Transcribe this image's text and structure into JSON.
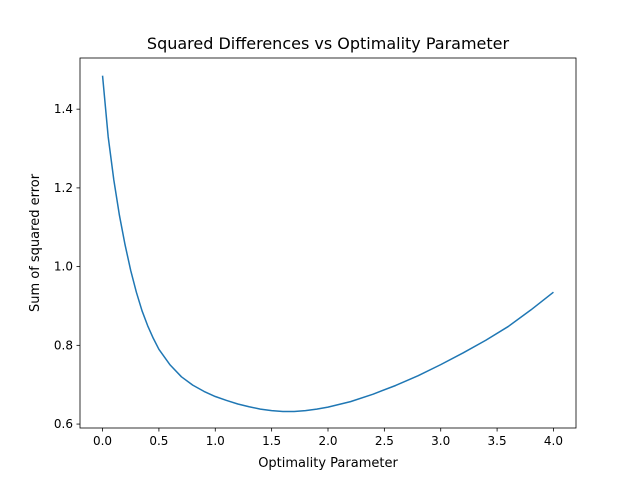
{
  "chart_data": {
    "type": "line",
    "title": "Squared Differences vs Optimality Parameter",
    "xlabel": "Optimality Parameter",
    "ylabel": "Sum of squared error",
    "xlim": [
      -0.2,
      4.2
    ],
    "ylim": [
      0.59,
      1.53
    ],
    "xticks": [
      0.0,
      0.5,
      1.0,
      1.5,
      2.0,
      2.5,
      3.0,
      3.5,
      4.0
    ],
    "xtick_labels": [
      "0.0",
      "0.5",
      "1.0",
      "1.5",
      "2.0",
      "2.5",
      "3.0",
      "3.5",
      "4.0"
    ],
    "yticks": [
      0.6,
      0.8,
      1.0,
      1.2,
      1.4
    ],
    "ytick_labels": [
      "0.6",
      "0.8",
      "1.0",
      "1.2",
      "1.4"
    ],
    "grid": false,
    "series": [
      {
        "color": "#1f77b4",
        "x": [
          0.0,
          0.05,
          0.1,
          0.15,
          0.2,
          0.25,
          0.3,
          0.35,
          0.4,
          0.45,
          0.5,
          0.6,
          0.7,
          0.8,
          0.9,
          1.0,
          1.1,
          1.2,
          1.3,
          1.4,
          1.5,
          1.6,
          1.65,
          1.7,
          1.8,
          1.9,
          2.0,
          2.2,
          2.4,
          2.6,
          2.8,
          3.0,
          3.2,
          3.4,
          3.6,
          3.8,
          4.0
        ],
        "y": [
          1.485,
          1.33,
          1.22,
          1.13,
          1.055,
          0.99,
          0.935,
          0.888,
          0.85,
          0.818,
          0.79,
          0.75,
          0.72,
          0.699,
          0.683,
          0.67,
          0.66,
          0.651,
          0.644,
          0.638,
          0.634,
          0.632,
          0.632,
          0.632,
          0.634,
          0.638,
          0.643,
          0.657,
          0.676,
          0.698,
          0.723,
          0.751,
          0.781,
          0.813,
          0.848,
          0.89,
          0.935
        ]
      }
    ]
  }
}
